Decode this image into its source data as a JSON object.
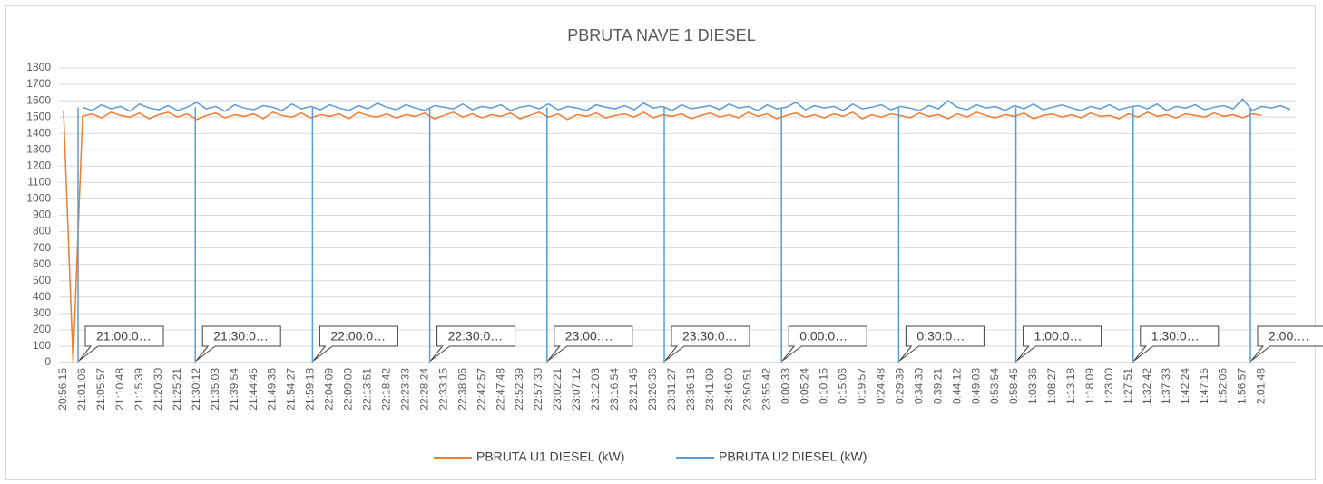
{
  "chart_data": {
    "type": "line",
    "title": "PBRUTA NAVE 1 DIESEL",
    "categories": [
      "20:56:15",
      null,
      "21:01:06",
      null,
      "21:05:57",
      null,
      "21:10:48",
      null,
      "21:15:39",
      null,
      "21:20:30",
      null,
      "21:25:21",
      null,
      "21:30:12",
      null,
      "21:35:03",
      null,
      "21:39:54",
      null,
      "21:44:45",
      null,
      "21:49:36",
      null,
      "21:54:27",
      null,
      "21:59:18",
      null,
      "22:04:09",
      null,
      "22:09:00",
      null,
      "22:13:51",
      null,
      "22:18:42",
      null,
      "22:23:33",
      null,
      "22:28:24",
      null,
      "22:33:15",
      null,
      "22:38:06",
      null,
      "22:42:57",
      null,
      "22:47:48",
      null,
      "22:52:39",
      null,
      "22:57:30",
      null,
      "23:02:21",
      null,
      "23:07:12",
      null,
      "23:12:03",
      null,
      "23:16:54",
      null,
      "23:21:45",
      null,
      "23:26:36",
      null,
      "23:31:27",
      null,
      "23:36:18",
      null,
      "23:41:09",
      null,
      "23:46:00",
      null,
      "23:50:51",
      null,
      "23:55:42",
      null,
      "0:00:33",
      null,
      "0:05:24",
      null,
      "0:10:15",
      null,
      "0:15:06",
      null,
      "0:19:57",
      null,
      "0:24:48",
      null,
      "0:29:39",
      null,
      "0:34:30",
      null,
      "0:39:21",
      null,
      "0:44:12",
      null,
      "0:49:03",
      null,
      "0:53:54",
      null,
      "0:58:45",
      null,
      "1:03:36",
      null,
      "1:08:27",
      null,
      "1:13:18",
      null,
      "1:18:09",
      null,
      "1:23:00",
      null,
      "1:27:51",
      null,
      "1:32:42",
      null,
      "1:37:33",
      null,
      "1:42:24",
      null,
      "1:47:15",
      null,
      "1:52:06",
      null,
      "1:56:57",
      null,
      "2:01:48",
      null,
      null,
      null
    ],
    "series": [
      {
        "name": "PBRUTA U1 DIESEL (kW)",
        "color": "#ed7d31",
        "values": [
          1540,
          0,
          1505,
          1520,
          1495,
          1530,
          1510,
          1500,
          1525,
          1490,
          1515,
          1530,
          1500,
          1520,
          1485,
          1510,
          1525,
          1495,
          1515,
          1505,
          1520,
          1490,
          1530,
          1510,
          1500,
          1525,
          1495,
          1515,
          1505,
          1520,
          1490,
          1530,
          1510,
          1500,
          1520,
          1495,
          1515,
          1505,
          1525,
          1490,
          1510,
          1530,
          1500,
          1520,
          1495,
          1515,
          1505,
          1525,
          1490,
          1510,
          1530,
          1500,
          1520,
          1485,
          1515,
          1505,
          1525,
          1495,
          1510,
          1520,
          1500,
          1530,
          1495,
          1515,
          1505,
          1520,
          1490,
          1510,
          1525,
          1500,
          1515,
          1495,
          1530,
          1505,
          1520,
          1490,
          1510,
          1525,
          1500,
          1515,
          1495,
          1520,
          1505,
          1530,
          1490,
          1515,
          1500,
          1520,
          1510,
          1495,
          1525,
          1505,
          1515,
          1490,
          1520,
          1500,
          1530,
          1510,
          1495,
          1515,
          1505,
          1525,
          1490,
          1510,
          1520,
          1500,
          1515,
          1495,
          1525,
          1505,
          1510,
          1490,
          1520,
          1500,
          1530,
          1505,
          1515,
          1495,
          1520,
          1510,
          1500,
          1525,
          1505,
          1515,
          1495,
          1520,
          1510,
          null,
          null,
          null
        ]
      },
      {
        "name": "PBRUTA U2 DIESEL (kW)",
        "color": "#5b9bd5",
        "values": [
          null,
          null,
          1560,
          1540,
          1575,
          1550,
          1565,
          1535,
          1580,
          1555,
          1545,
          1570,
          1540,
          1560,
          1590,
          1550,
          1565,
          1535,
          1575,
          1555,
          1545,
          1570,
          1560,
          1540,
          1580,
          1550,
          1565,
          1545,
          1575,
          1555,
          1540,
          1570,
          1550,
          1585,
          1560,
          1545,
          1575,
          1555,
          1540,
          1570,
          1560,
          1550,
          1580,
          1545,
          1565,
          1555,
          1575,
          1540,
          1560,
          1570,
          1550,
          1580,
          1545,
          1565,
          1555,
          1540,
          1575,
          1560,
          1550,
          1570,
          1545,
          1585,
          1555,
          1565,
          1540,
          1575,
          1550,
          1560,
          1570,
          1545,
          1580,
          1555,
          1565,
          1540,
          1575,
          1550,
          1560,
          1590,
          1545,
          1570,
          1555,
          1565,
          1540,
          1580,
          1550,
          1560,
          1575,
          1545,
          1565,
          1555,
          1540,
          1570,
          1550,
          1600,
          1560,
          1545,
          1575,
          1555,
          1565,
          1540,
          1570,
          1550,
          1580,
          1545,
          1560,
          1575,
          1555,
          1540,
          1565,
          1550,
          1575,
          1545,
          1560,
          1570,
          1550,
          1580,
          1540,
          1565,
          1555,
          1575,
          1545,
          1560,
          1570,
          1550,
          1610,
          1540,
          1565,
          1555,
          1570,
          1545
        ]
      }
    ],
    "annotations": [
      "21:00:0…",
      "21:30:0…",
      "22:00:0…",
      "22:30:0…",
      "23:00:…",
      "23:30:0…",
      "0:00:0…",
      "0:30:0…",
      "1:00:0…",
      "1:30:0…",
      "2:00:…"
    ],
    "ylim": [
      0,
      1800
    ],
    "yticks": [
      0,
      100,
      200,
      300,
      400,
      500,
      600,
      700,
      800,
      900,
      1000,
      1100,
      1200,
      1300,
      1400,
      1500,
      1600,
      1700,
      1800
    ],
    "grid": true,
    "legend": "bottom"
  }
}
